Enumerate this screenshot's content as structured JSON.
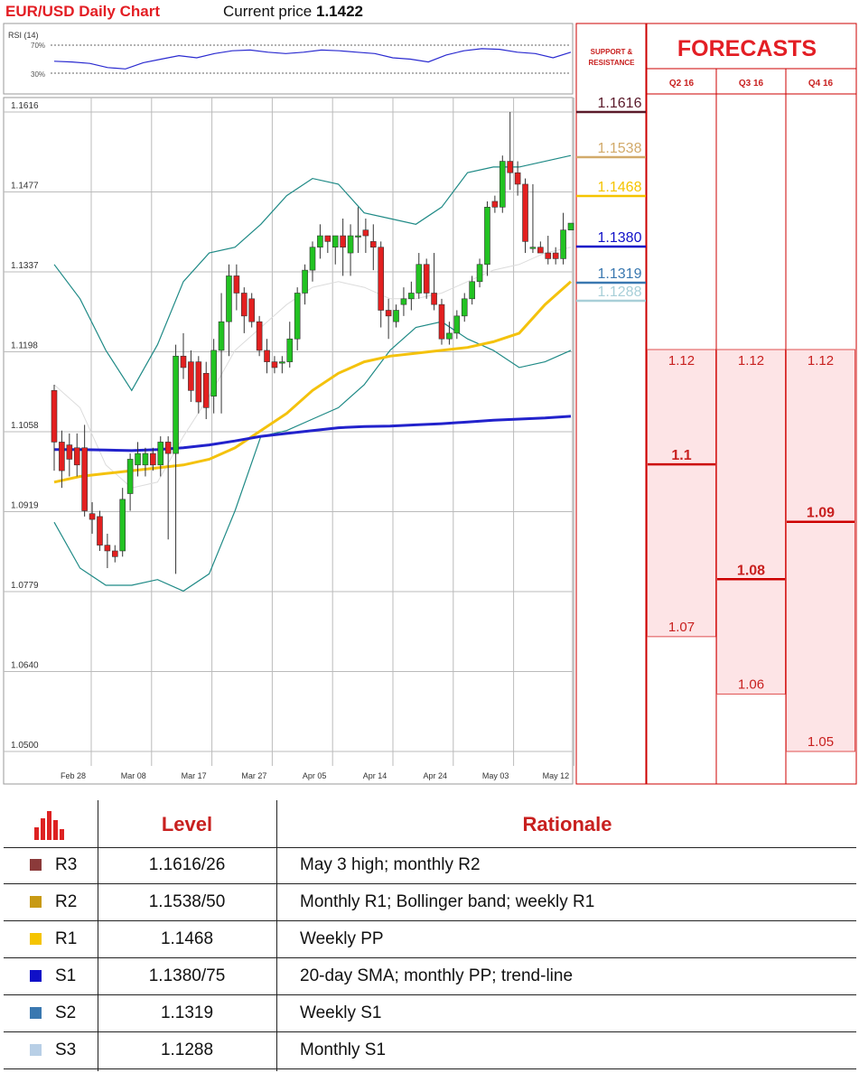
{
  "header": {
    "title": "EUR/USD Daily Chart",
    "price_label": "Current price",
    "price_value": "1.1422"
  },
  "rsi": {
    "label": "RSI (14)",
    "levels": [
      "70%",
      "30%"
    ]
  },
  "sr_panel": {
    "title": "SUPPORT & RESISTANCE",
    "levels": [
      {
        "value": "1.1616",
        "color": "#5a1a2a"
      },
      {
        "value": "1.1538",
        "color": "#d2aa6a"
      },
      {
        "value": "1.1468",
        "color": "#f5c400"
      },
      {
        "value": "1.1380",
        "color": "#1010c8"
      },
      {
        "value": "1.1319",
        "color": "#3a78b0"
      },
      {
        "value": "1.1288",
        "color": "#a8cfd8"
      }
    ]
  },
  "forecasts": {
    "title": "FORECASTS",
    "quarters": [
      {
        "label": "Q2 16",
        "high": "1.12",
        "median": "1.1",
        "low": "1.07"
      },
      {
        "label": "Q3 16",
        "high": "1.12",
        "median": "1.08",
        "low": "1.06"
      },
      {
        "label": "Q4 16",
        "high": "1.12",
        "median": "1.09",
        "low": "1.05"
      }
    ]
  },
  "chart_data": {
    "type": "candlestick",
    "title": "EUR/USD Daily Chart",
    "y_ticks": [
      "1.1616",
      "1.1477",
      "1.1337",
      "1.1198",
      "1.1058",
      "1.0919",
      "1.0779",
      "1.0640",
      "1.0500"
    ],
    "ylim": [
      1.05,
      1.1616
    ],
    "x_ticks": [
      "Feb 28",
      "Mar 08",
      "Mar 17",
      "Mar 27",
      "Apr 05",
      "Apr 14",
      "Apr 24",
      "May 03",
      "May 12"
    ],
    "grid": true,
    "candles": [
      {
        "o": 1.113,
        "h": 1.114,
        "l": 1.099,
        "c": 1.104
      },
      {
        "o": 1.104,
        "h": 1.106,
        "l": 1.096,
        "c": 1.099
      },
      {
        "o": 1.1035,
        "h": 1.1055,
        "l": 1.098,
        "c": 1.101
      },
      {
        "o": 1.103,
        "h": 1.1055,
        "l": 1.098,
        "c": 1.1
      },
      {
        "o": 1.103,
        "h": 1.107,
        "l": 1.091,
        "c": 1.092
      },
      {
        "o": 1.0915,
        "h": 1.0935,
        "l": 1.088,
        "c": 1.0905
      },
      {
        "o": 1.091,
        "h": 1.092,
        "l": 1.085,
        "c": 1.086
      },
      {
        "o": 1.086,
        "h": 1.088,
        "l": 1.082,
        "c": 1.085
      },
      {
        "o": 1.085,
        "h": 1.086,
        "l": 1.083,
        "c": 1.084
      },
      {
        "o": 1.085,
        "h": 1.096,
        "l": 1.084,
        "c": 1.094
      },
      {
        "o": 1.095,
        "h": 1.102,
        "l": 1.092,
        "c": 1.101
      },
      {
        "o": 1.1,
        "h": 1.104,
        "l": 1.098,
        "c": 1.102
      },
      {
        "o": 1.1,
        "h": 1.103,
        "l": 1.098,
        "c": 1.102
      },
      {
        "o": 1.102,
        "h": 1.103,
        "l": 1.099,
        "c": 1.1
      },
      {
        "o": 1.1,
        "h": 1.105,
        "l": 1.098,
        "c": 1.104
      },
      {
        "o": 1.104,
        "h": 1.105,
        "l": 1.087,
        "c": 1.102
      },
      {
        "o": 1.102,
        "h": 1.121,
        "l": 1.081,
        "c": 1.119
      },
      {
        "o": 1.119,
        "h": 1.123,
        "l": 1.115,
        "c": 1.117
      },
      {
        "o": 1.118,
        "h": 1.12,
        "l": 1.111,
        "c": 1.113
      },
      {
        "o": 1.118,
        "h": 1.119,
        "l": 1.109,
        "c": 1.111
      },
      {
        "o": 1.116,
        "h": 1.118,
        "l": 1.108,
        "c": 1.11
      },
      {
        "o": 1.112,
        "h": 1.122,
        "l": 1.109,
        "c": 1.12
      },
      {
        "o": 1.12,
        "h": 1.13,
        "l": 1.109,
        "c": 1.125
      },
      {
        "o": 1.125,
        "h": 1.135,
        "l": 1.119,
        "c": 1.133
      },
      {
        "o": 1.133,
        "h": 1.135,
        "l": 1.127,
        "c": 1.13
      },
      {
        "o": 1.13,
        "h": 1.131,
        "l": 1.123,
        "c": 1.126
      },
      {
        "o": 1.129,
        "h": 1.13,
        "l": 1.124,
        "c": 1.125
      },
      {
        "o": 1.125,
        "h": 1.126,
        "l": 1.119,
        "c": 1.12
      },
      {
        "o": 1.12,
        "h": 1.122,
        "l": 1.116,
        "c": 1.118
      },
      {
        "o": 1.118,
        "h": 1.119,
        "l": 1.116,
        "c": 1.117
      },
      {
        "o": 1.118,
        "h": 1.119,
        "l": 1.116,
        "c": 1.118
      },
      {
        "o": 1.118,
        "h": 1.125,
        "l": 1.117,
        "c": 1.122
      },
      {
        "o": 1.122,
        "h": 1.131,
        "l": 1.12,
        "c": 1.13
      },
      {
        "o": 1.13,
        "h": 1.135,
        "l": 1.128,
        "c": 1.134
      },
      {
        "o": 1.134,
        "h": 1.139,
        "l": 1.132,
        "c": 1.138
      },
      {
        "o": 1.138,
        "h": 1.142,
        "l": 1.136,
        "c": 1.14
      },
      {
        "o": 1.14,
        "h": 1.14,
        "l": 1.137,
        "c": 1.139
      },
      {
        "o": 1.138,
        "h": 1.14,
        "l": 1.135,
        "c": 1.14
      },
      {
        "o": 1.14,
        "h": 1.143,
        "l": 1.133,
        "c": 1.138
      },
      {
        "o": 1.137,
        "h": 1.142,
        "l": 1.133,
        "c": 1.14
      },
      {
        "o": 1.14,
        "h": 1.145,
        "l": 1.137,
        "c": 1.14
      },
      {
        "o": 1.141,
        "h": 1.143,
        "l": 1.137,
        "c": 1.14
      },
      {
        "o": 1.139,
        "h": 1.142,
        "l": 1.134,
        "c": 1.138
      },
      {
        "o": 1.138,
        "h": 1.139,
        "l": 1.124,
        "c": 1.127
      },
      {
        "o": 1.127,
        "h": 1.129,
        "l": 1.122,
        "c": 1.126
      },
      {
        "o": 1.125,
        "h": 1.128,
        "l": 1.124,
        "c": 1.127
      },
      {
        "o": 1.128,
        "h": 1.131,
        "l": 1.126,
        "c": 1.129
      },
      {
        "o": 1.129,
        "h": 1.132,
        "l": 1.127,
        "c": 1.13
      },
      {
        "o": 1.13,
        "h": 1.137,
        "l": 1.129,
        "c": 1.135
      },
      {
        "o": 1.135,
        "h": 1.136,
        "l": 1.129,
        "c": 1.13
      },
      {
        "o": 1.13,
        "h": 1.137,
        "l": 1.127,
        "c": 1.128
      },
      {
        "o": 1.128,
        "h": 1.129,
        "l": 1.121,
        "c": 1.122
      },
      {
        "o": 1.122,
        "h": 1.125,
        "l": 1.121,
        "c": 1.123
      },
      {
        "o": 1.123,
        "h": 1.127,
        "l": 1.122,
        "c": 1.126
      },
      {
        "o": 1.126,
        "h": 1.13,
        "l": 1.125,
        "c": 1.129
      },
      {
        "o": 1.129,
        "h": 1.133,
        "l": 1.128,
        "c": 1.132
      },
      {
        "o": 1.132,
        "h": 1.136,
        "l": 1.131,
        "c": 1.135
      },
      {
        "o": 1.135,
        "h": 1.146,
        "l": 1.133,
        "c": 1.145
      },
      {
        "o": 1.146,
        "h": 1.147,
        "l": 1.144,
        "c": 1.145
      },
      {
        "o": 1.145,
        "h": 1.154,
        "l": 1.144,
        "c": 1.153
      },
      {
        "o": 1.153,
        "h": 1.1616,
        "l": 1.148,
        "c": 1.151
      },
      {
        "o": 1.151,
        "h": 1.153,
        "l": 1.147,
        "c": 1.149
      },
      {
        "o": 1.149,
        "h": 1.15,
        "l": 1.137,
        "c": 1.139
      },
      {
        "o": 1.138,
        "h": 1.149,
        "l": 1.137,
        "c": 1.138
      },
      {
        "o": 1.138,
        "h": 1.139,
        "l": 1.137,
        "c": 1.137
      },
      {
        "o": 1.137,
        "h": 1.14,
        "l": 1.135,
        "c": 1.136
      },
      {
        "o": 1.137,
        "h": 1.138,
        "l": 1.135,
        "c": 1.136
      },
      {
        "o": 1.136,
        "h": 1.144,
        "l": 1.135,
        "c": 1.141
      },
      {
        "o": 1.141,
        "h": 1.142,
        "l": 1.141,
        "c": 1.1422
      }
    ],
    "sma50": [
      1.097,
      1.098,
      1.0985,
      1.099,
      1.0995,
      1.1,
      1.101,
      1.103,
      1.106,
      1.109,
      1.113,
      1.116,
      1.118,
      1.119,
      1.1195,
      1.12,
      1.1205,
      1.1215,
      1.123,
      1.128,
      1.132
    ],
    "sma200": [
      1.1027,
      1.1027,
      1.1026,
      1.1025,
      1.1027,
      1.103,
      1.1035,
      1.1042,
      1.105,
      1.1055,
      1.106,
      1.1065,
      1.1067,
      1.1068,
      1.107,
      1.1072,
      1.1075,
      1.1078,
      1.108,
      1.1082,
      1.1085
    ],
    "bb_upper": [
      1.135,
      1.129,
      1.12,
      1.113,
      1.121,
      1.132,
      1.137,
      1.138,
      1.142,
      1.147,
      1.15,
      1.149,
      1.144,
      1.143,
      1.142,
      1.145,
      1.151,
      1.152,
      1.152,
      1.153,
      1.154
    ],
    "bb_lower": [
      1.09,
      1.082,
      1.079,
      1.079,
      1.08,
      1.078,
      1.081,
      1.092,
      1.105,
      1.106,
      1.108,
      1.11,
      1.114,
      1.12,
      1.124,
      1.125,
      1.122,
      1.12,
      1.117,
      1.118,
      1.12
    ],
    "sma20": [
      1.114,
      1.11,
      1.1,
      1.096,
      1.097,
      1.105,
      1.112,
      1.12,
      1.124,
      1.128,
      1.131,
      1.132,
      1.131,
      1.129,
      1.129,
      1.13,
      1.132,
      1.134,
      1.135,
      1.137,
      1.138
    ],
    "rsi_values": [
      47,
      46,
      44,
      38,
      36,
      45,
      50,
      55,
      52,
      58,
      62,
      63,
      60,
      58,
      60,
      63,
      62,
      60,
      58,
      52,
      50,
      46,
      56,
      62,
      65,
      64,
      60,
      58,
      52,
      60
    ]
  },
  "table": {
    "headers": {
      "level": "Level",
      "rationale": "Rationale"
    },
    "rows": [
      {
        "name": "R3",
        "value": "1.1616/26",
        "rationale": "May 3 high; monthly R2",
        "color": "#8b3a3a"
      },
      {
        "name": "R2",
        "value": "1.1538/50",
        "rationale": "Monthly R1; Bollinger band; weekly R1",
        "color": "#c89a14"
      },
      {
        "name": "R1",
        "value": "1.1468",
        "rationale": "Weekly PP",
        "color": "#f5c400"
      },
      {
        "name": "S1",
        "value": "1.1380/75",
        "rationale": "20-day SMA; monthly PP; trend-line",
        "color": "#1010c8"
      },
      {
        "name": "S2",
        "value": "1.1319",
        "rationale": "Weekly S1",
        "color": "#3a78b0"
      },
      {
        "name": "S3",
        "value": "1.1288",
        "rationale": "Monthly S1",
        "color": "#b8cfe6"
      }
    ]
  }
}
